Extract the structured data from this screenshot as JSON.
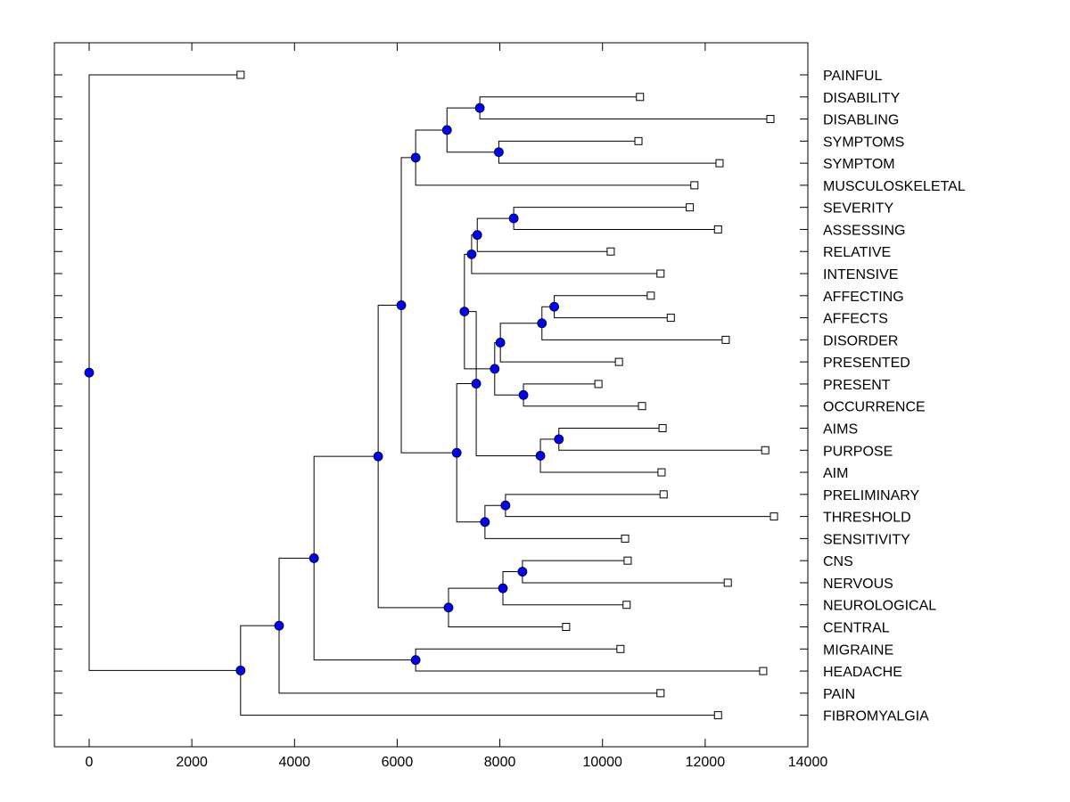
{
  "chart_data": {
    "type": "dendrogram",
    "title": "",
    "xlabel": "",
    "ylabel": "",
    "xlim": [
      -680,
      14000
    ],
    "xticks": [
      0,
      2000,
      4000,
      6000,
      8000,
      10000,
      12000,
      14000
    ],
    "xtick_labels": [
      "0",
      "2000",
      "4000",
      "6000",
      "8000",
      "10000",
      "12000",
      "14000"
    ],
    "grid": false,
    "legend": "none",
    "node_color": "#0000ff",
    "leaf_marker": "open-square",
    "leaves": [
      {
        "label": "PAINFUL",
        "value": 2950
      },
      {
        "label": "DISABILITY",
        "value": 10730
      },
      {
        "label": "DISABLING",
        "value": 13270
      },
      {
        "label": "SYMPTOMS",
        "value": 10700
      },
      {
        "label": "SYMPTOM",
        "value": 12280
      },
      {
        "label": "MUSCULOSKELETAL",
        "value": 11790
      },
      {
        "label": "SEVERITY",
        "value": 11700
      },
      {
        "label": "ASSESSING",
        "value": 12250
      },
      {
        "label": "RELATIVE",
        "value": 10160
      },
      {
        "label": "INTENSIVE",
        "value": 11130
      },
      {
        "label": "AFFECTING",
        "value": 10940
      },
      {
        "label": "AFFECTS",
        "value": 11330
      },
      {
        "label": "DISORDER",
        "value": 12400
      },
      {
        "label": "PRESENTED",
        "value": 10320
      },
      {
        "label": "PRESENT",
        "value": 9920
      },
      {
        "label": "OCCURRENCE",
        "value": 10770
      },
      {
        "label": "AIMS",
        "value": 11170
      },
      {
        "label": "PURPOSE",
        "value": 13170
      },
      {
        "label": "AIM",
        "value": 11150
      },
      {
        "label": "PRELIMINARY",
        "value": 11190
      },
      {
        "label": "THRESHOLD",
        "value": 13340
      },
      {
        "label": "SENSITIVITY",
        "value": 10440
      },
      {
        "label": "CNS",
        "value": 10490
      },
      {
        "label": "NERVOUS",
        "value": 12440
      },
      {
        "label": "NEUROLOGICAL",
        "value": 10470
      },
      {
        "label": "CENTRAL",
        "value": 9290
      },
      {
        "label": "MIGRAINE",
        "value": 10350
      },
      {
        "label": "HEADACHE",
        "value": 13130
      },
      {
        "label": "PAIN",
        "value": 11130
      },
      {
        "label": "FIBROMYALGIA",
        "value": 12250
      }
    ],
    "nodes": [
      {
        "id": "root",
        "value": 0,
        "children": [
          "PAINFUL",
          "n_fibro"
        ]
      },
      {
        "id": "n_fibro",
        "value": 2950,
        "children": [
          "n_pain",
          "FIBROMYALGIA"
        ]
      },
      {
        "id": "n_pain",
        "value": 3700,
        "children": [
          "n_mig",
          "PAIN"
        ]
      },
      {
        "id": "n_mig",
        "value": 4380,
        "children": [
          "n_big",
          "n_mh"
        ]
      },
      {
        "id": "n_mh",
        "value": 6360,
        "children": [
          "MIGRAINE",
          "HEADACHE"
        ]
      },
      {
        "id": "n_big",
        "value": 5630,
        "children": [
          "n_upper",
          "n_cns"
        ]
      },
      {
        "id": "n_upper",
        "value": 6080,
        "children": [
          "n_musc",
          "n_rest"
        ]
      },
      {
        "id": "n_musc",
        "value": 6360,
        "children": [
          "n_sym",
          "MUSCULOSKELETAL"
        ]
      },
      {
        "id": "n_sym",
        "value": 6970,
        "children": [
          "n_dis",
          "n_symp"
        ]
      },
      {
        "id": "n_dis",
        "value": 7610,
        "children": [
          "DISABILITY",
          "DISABLING"
        ]
      },
      {
        "id": "n_symp",
        "value": 7980,
        "children": [
          "SYMPTOMS",
          "SYMPTOM"
        ]
      },
      {
        "id": "n_rest",
        "value": 7160,
        "children": [
          "n_mid",
          "n_thr"
        ]
      },
      {
        "id": "n_mid",
        "value": 7540,
        "children": [
          "n_a1",
          "n_aim"
        ]
      },
      {
        "id": "n_a1",
        "value": 7310,
        "children": [
          "n_sevg",
          "n_a2"
        ]
      },
      {
        "id": "n_sevg",
        "value": 7450,
        "children": [
          "n_sev",
          "INTENSIVE"
        ]
      },
      {
        "id": "n_sev",
        "value": 7560,
        "children": [
          "n_sa",
          "RELATIVE"
        ]
      },
      {
        "id": "n_sa",
        "value": 8270,
        "children": [
          "SEVERITY",
          "ASSESSING"
        ]
      },
      {
        "id": "n_a2",
        "value": 7900,
        "children": [
          "n_a2b",
          "n_pp"
        ]
      },
      {
        "id": "n_a2b",
        "value": 8010,
        "children": [
          "n_a3",
          "PRESENTED"
        ]
      },
      {
        "id": "n_a3",
        "value": 8820,
        "children": [
          "n_a4",
          "DISORDER"
        ]
      },
      {
        "id": "n_a4",
        "value": 9060,
        "children": [
          "AFFECTING",
          "AFFECTS"
        ]
      },
      {
        "id": "n_pp",
        "value": 8460,
        "children": [
          "PRESENT",
          "OCCURRENCE"
        ]
      },
      {
        "id": "n_aim",
        "value": 8790,
        "children": [
          "n_aims",
          "AIM"
        ]
      },
      {
        "id": "n_aims",
        "value": 9150,
        "children": [
          "AIMS",
          "PURPOSE"
        ]
      },
      {
        "id": "n_thr",
        "value": 7710,
        "children": [
          "n_pre",
          "SENSITIVITY"
        ]
      },
      {
        "id": "n_pre",
        "value": 8110,
        "children": [
          "PRELIMINARY",
          "THRESHOLD"
        ]
      },
      {
        "id": "n_cns",
        "value": 7000,
        "children": [
          "n_nerv",
          "CENTRAL"
        ]
      },
      {
        "id": "n_nerv",
        "value": 8060,
        "children": [
          "n_cn",
          "NEUROLOGICAL"
        ]
      },
      {
        "id": "n_cn",
        "value": 8440,
        "children": [
          "CNS",
          "NERVOUS"
        ]
      }
    ]
  }
}
